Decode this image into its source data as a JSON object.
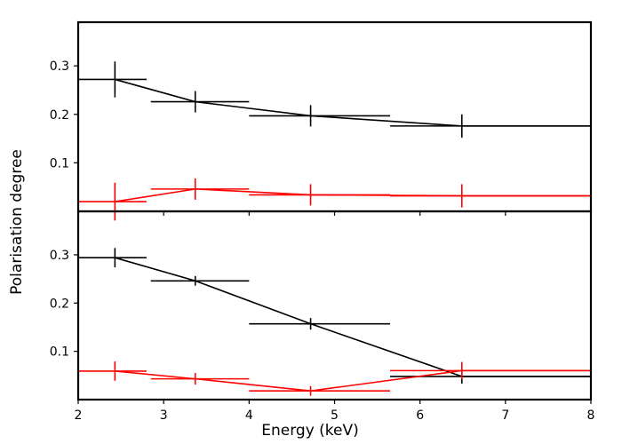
{
  "chart_data": [
    {
      "type": "scatter",
      "panel": "top",
      "xlim": [
        2,
        8
      ],
      "ylim": [
        0,
        0.39
      ],
      "yticks": [
        0.1,
        0.2,
        0.3
      ],
      "yticklabels": [
        "0.1",
        "0.2",
        "0.3"
      ],
      "series": [
        {
          "color": "#000000",
          "points": [
            {
              "x": 2.43,
              "y": 0.272,
              "xerr": [
                0.43,
                0.37
              ],
              "yerr": 0.037
            },
            {
              "x": 3.37,
              "y": 0.226,
              "xerr": [
                0.52,
                0.63
              ],
              "yerr": 0.022
            },
            {
              "x": 4.72,
              "y": 0.197,
              "xerr": [
                0.72,
                0.93
              ],
              "yerr": 0.022
            },
            {
              "x": 6.49,
              "y": 0.176,
              "xerr": [
                0.84,
                1.51
              ],
              "yerr": 0.024
            }
          ]
        },
        {
          "color": "#ff0000",
          "points": [
            {
              "x": 2.43,
              "y": 0.02,
              "xerr": [
                0.43,
                0.37
              ],
              "yerr": 0.039
            },
            {
              "x": 3.37,
              "y": 0.046,
              "xerr": [
                0.52,
                0.63
              ],
              "yerr": 0.022
            },
            {
              "x": 4.72,
              "y": 0.034,
              "xerr": [
                0.72,
                0.93
              ],
              "yerr": 0.022
            },
            {
              "x": 6.49,
              "y": 0.032,
              "xerr": [
                0.84,
                1.51
              ],
              "yerr": 0.024
            }
          ]
        }
      ]
    },
    {
      "type": "scatter",
      "panel": "bottom",
      "xlim": [
        2,
        8
      ],
      "ylim": [
        0,
        0.39
      ],
      "xticks": [
        2,
        3,
        4,
        5,
        6,
        7,
        8
      ],
      "xticklabels": [
        "2",
        "3",
        "4",
        "5",
        "6",
        "7",
        "8"
      ],
      "yticks": [
        0.1,
        0.2,
        0.3
      ],
      "yticklabels": [
        "0.1",
        "0.2",
        "0.3"
      ],
      "series": [
        {
          "color": "#000000",
          "points": [
            {
              "x": 2.43,
              "y": 0.294,
              "xerr": [
                0.43,
                0.37
              ],
              "yerr": 0.02
            },
            {
              "x": 3.37,
              "y": 0.246,
              "xerr": [
                0.52,
                0.63
              ],
              "yerr": 0.01
            },
            {
              "x": 4.72,
              "y": 0.157,
              "xerr": [
                0.72,
                0.93
              ],
              "yerr": 0.012
            },
            {
              "x": 6.49,
              "y": 0.048,
              "xerr": [
                0.84,
                1.51
              ],
              "yerr": 0.015
            }
          ]
        },
        {
          "color": "#ff0000",
          "points": [
            {
              "x": 2.43,
              "y": 0.059,
              "xerr": [
                0.43,
                0.37
              ],
              "yerr": 0.02
            },
            {
              "x": 3.37,
              "y": 0.043,
              "xerr": [
                0.52,
                0.63
              ],
              "yerr": 0.012
            },
            {
              "x": 4.72,
              "y": 0.018,
              "xerr": [
                0.72,
                0.93
              ],
              "yerr": 0.01
            },
            {
              "x": 6.49,
              "y": 0.06,
              "xerr": [
                0.84,
                1.51
              ],
              "yerr": 0.018
            }
          ]
        }
      ]
    }
  ],
  "xlabel": "Energy (keV)",
  "ylabel": "Polarisation degree"
}
